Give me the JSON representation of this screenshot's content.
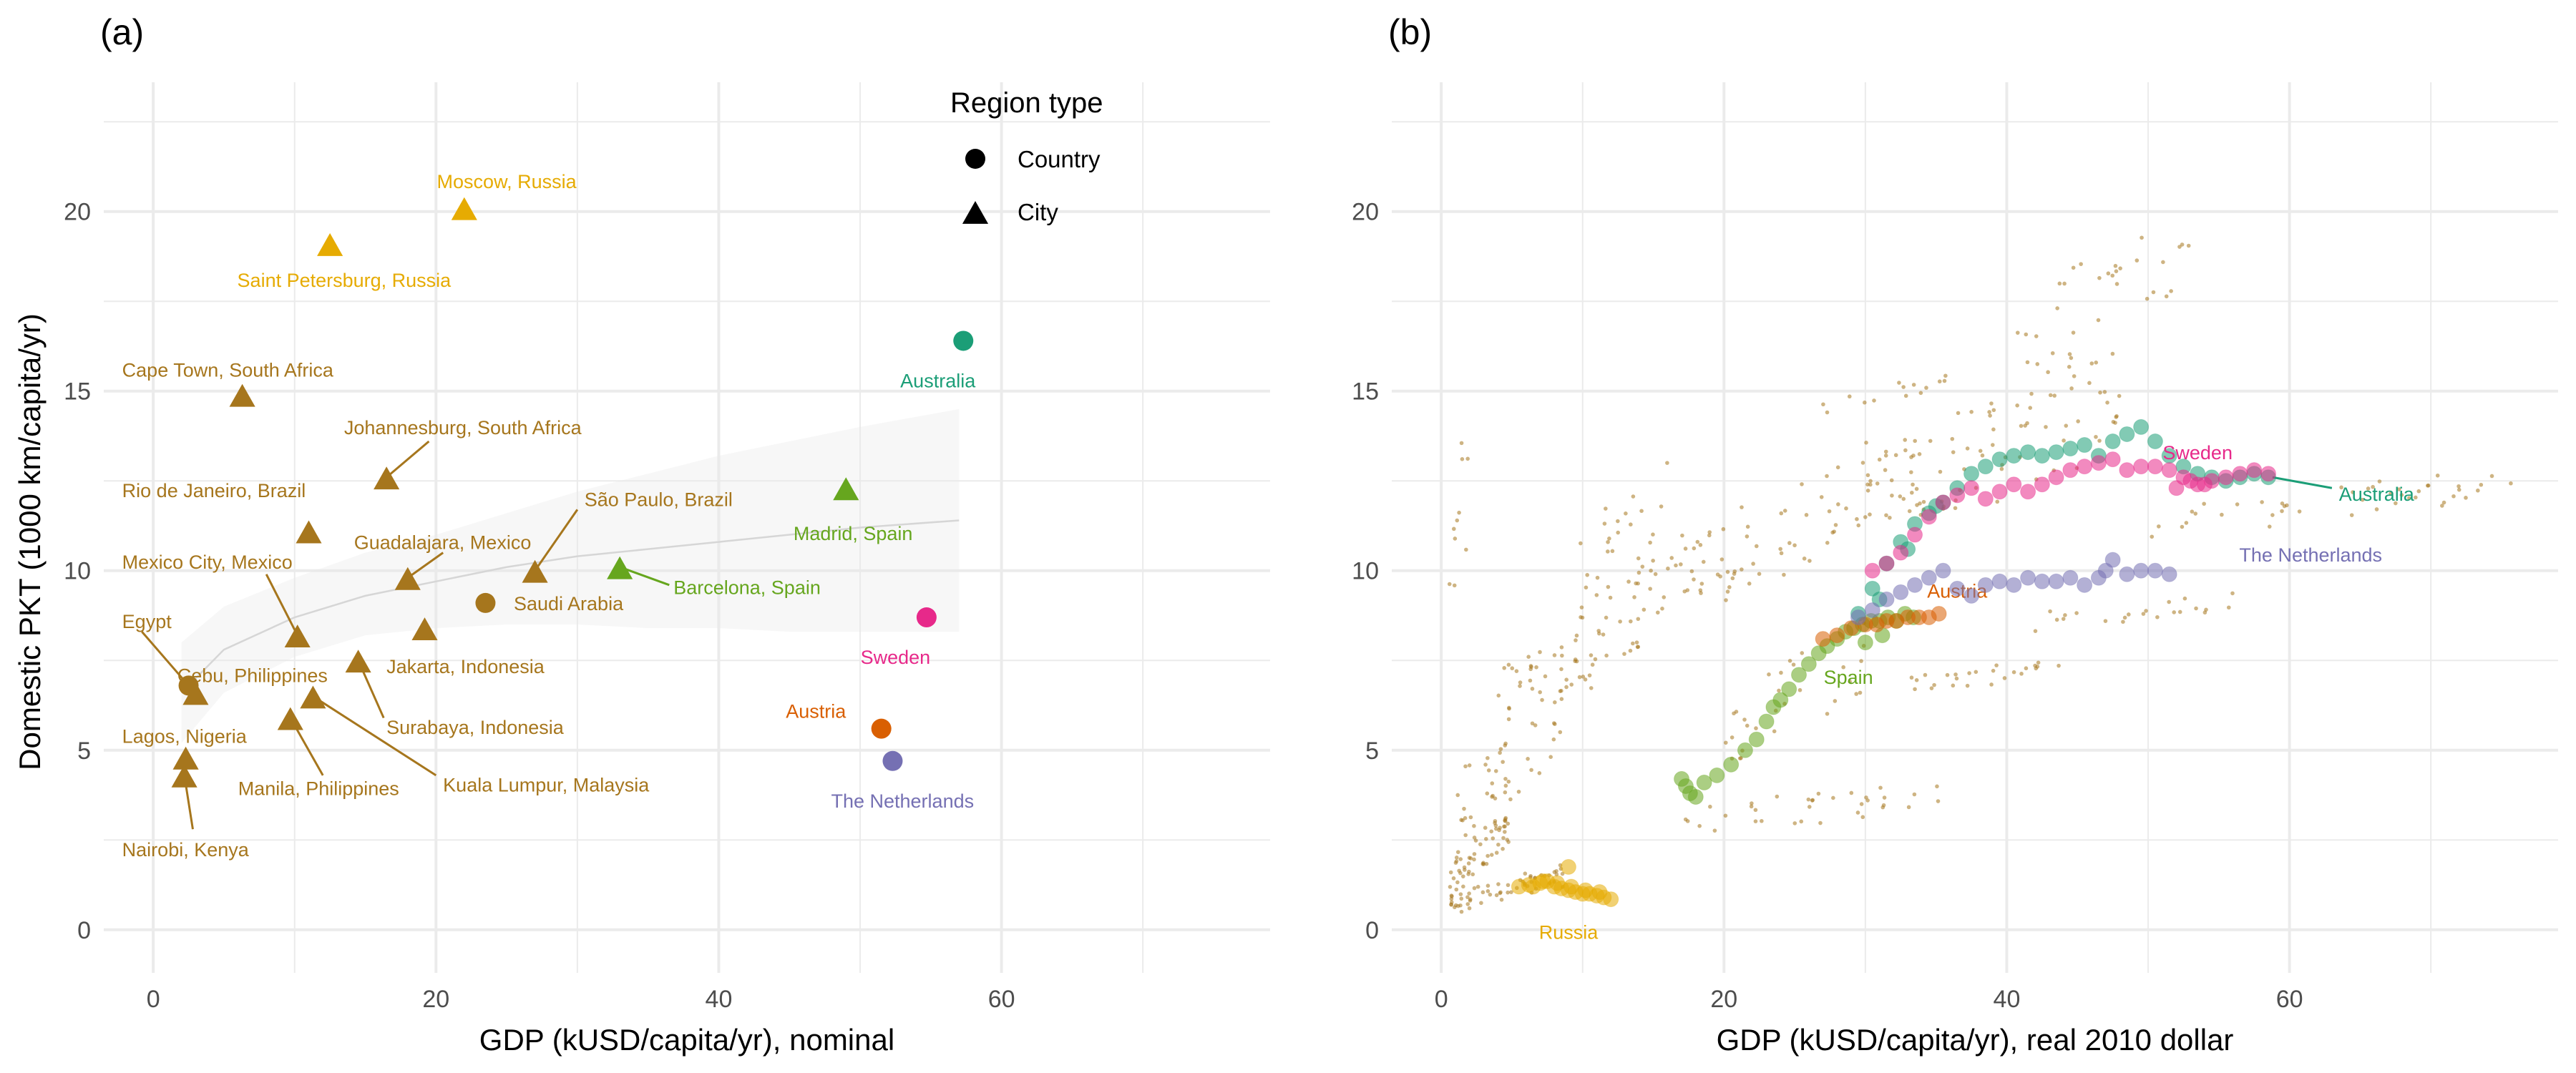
{
  "colors": {
    "africa_brown": "#A6761D",
    "russia_yellow": "#E6AB02",
    "australia_green": "#1B9E77",
    "spain_green": "#66A61E",
    "sweden_pink": "#E7298A",
    "austria_orange": "#D95F02",
    "netherlands_purple": "#7570B3",
    "grid": "#EBEBEB",
    "tick_text": "#4D4D4D",
    "ribbon": "#E8E8E8",
    "trend": "#D6D6D6"
  },
  "chart_data": [
    {
      "type": "scatter",
      "panel": "(a)",
      "xlabel": "GDP (kUSD/capita/yr), nominal",
      "ylabel": "Domestic PKT (1000 km/capita/yr)",
      "xlim": [
        -3.5,
        79
      ],
      "ylim": [
        -1.2,
        23.6
      ],
      "xticks": [
        0,
        20,
        40,
        60
      ],
      "yticks": [
        0,
        5,
        10,
        15,
        20
      ],
      "grid": true,
      "legend": {
        "title": "Region type",
        "position": "top-center",
        "entries": [
          {
            "label": "Country",
            "shape": "circle"
          },
          {
            "label": "City",
            "shape": "triangle"
          }
        ]
      },
      "trend": {
        "x": [
          2,
          5,
          10,
          15,
          20,
          25,
          30,
          35,
          40,
          45,
          50,
          57
        ],
        "y": [
          6.6,
          7.8,
          8.7,
          9.3,
          9.7,
          10.1,
          10.4,
          10.6,
          10.8,
          11.0,
          11.2,
          11.4
        ],
        "lower": [
          5.2,
          6.6,
          7.6,
          8.2,
          8.4,
          8.5,
          8.5,
          8.4,
          8.4,
          8.3,
          8.3,
          8.3
        ],
        "upper": [
          8.0,
          9.0,
          9.8,
          10.5,
          11.0,
          11.6,
          12.2,
          12.7,
          13.2,
          13.6,
          14.0,
          14.5
        ]
      },
      "points": [
        {
          "label": "Moscow, Russia",
          "x": 22.0,
          "y": 20.1,
          "shape": "triangle",
          "color": "russia_yellow",
          "lx": 25.0,
          "ly": 20.85,
          "anchor": "middle"
        },
        {
          "label": "Saint Petersburg, Russia",
          "x": 12.5,
          "y": 19.1,
          "shape": "triangle",
          "color": "russia_yellow",
          "lx": 13.5,
          "ly": 18.1,
          "anchor": "middle"
        },
        {
          "label": "Cape Town, South Africa",
          "x": 6.3,
          "y": 14.9,
          "shape": "triangle",
          "color": "africa_brown",
          "lx": -2.2,
          "ly": 15.6,
          "anchor": "start"
        },
        {
          "label": "Johannesburg, South Africa",
          "x": 16.5,
          "y": 12.6,
          "shape": "triangle",
          "color": "africa_brown",
          "lx": 13.5,
          "ly": 14.0,
          "anchor": "start",
          "line": [
            [
              16.5,
              12.6
            ],
            [
              19.5,
              13.6
            ]
          ]
        },
        {
          "label": "Rio de Janeiro, Brazil",
          "x": 11.0,
          "y": 11.1,
          "shape": "triangle",
          "color": "africa_brown",
          "lx": -2.2,
          "ly": 12.25,
          "anchor": "start"
        },
        {
          "label": "São Paulo, Brazil",
          "x": 27.0,
          "y": 10.0,
          "shape": "triangle",
          "color": "africa_brown",
          "lx": 30.5,
          "ly": 12.0,
          "anchor": "start",
          "line": [
            [
              27.0,
              10.0
            ],
            [
              30.0,
              11.7
            ]
          ]
        },
        {
          "label": "Madrid, Spain",
          "x": 49.0,
          "y": 12.3,
          "shape": "triangle",
          "color": "spain_green",
          "lx": 49.5,
          "ly": 11.05,
          "anchor": "middle"
        },
        {
          "label": "Guadalajara, Mexico",
          "x": 18.0,
          "y": 9.8,
          "shape": "triangle",
          "color": "africa_brown",
          "lx": 14.2,
          "ly": 10.8,
          "anchor": "start",
          "line": [
            [
              18.0,
              9.8
            ],
            [
              20.5,
              10.5
            ]
          ]
        },
        {
          "label": "Mexico City, Mexico",
          "x": 10.2,
          "y": 8.2,
          "shape": "triangle",
          "color": "africa_brown",
          "lx": -2.2,
          "ly": 10.25,
          "anchor": "start",
          "line": [
            [
              10.2,
              8.2
            ],
            [
              8.0,
              9.9
            ]
          ]
        },
        {
          "label": "Barcelona, Spain",
          "x": 33.0,
          "y": 10.1,
          "shape": "triangle",
          "color": "spain_green",
          "lx": 36.8,
          "ly": 9.55,
          "anchor": "start",
          "line": [
            [
              33.0,
              10.1
            ],
            [
              36.5,
              9.6
            ]
          ]
        },
        {
          "label": "Saudi Arabia",
          "x": 23.5,
          "y": 9.1,
          "shape": "circle",
          "color": "africa_brown",
          "lx": 25.5,
          "ly": 9.1,
          "anchor": "start"
        },
        {
          "label": "Egypt",
          "x": 2.5,
          "y": 6.8,
          "shape": "circle",
          "color": "africa_brown",
          "lx": -2.2,
          "ly": 8.6,
          "anchor": "start",
          "line": [
            [
              2.5,
              6.8
            ],
            [
              -0.8,
              8.3
            ]
          ]
        },
        {
          "label": "Jakarta, Indonesia",
          "x": 19.2,
          "y": 8.4,
          "shape": "triangle",
          "color": "africa_brown",
          "lx": 16.5,
          "ly": 7.35,
          "anchor": "start"
        },
        {
          "label": "Cebu, Philippines",
          "x": 3.0,
          "y": 6.6,
          "shape": "triangle",
          "color": "africa_brown",
          "lx": 1.7,
          "ly": 7.1,
          "anchor": "start"
        },
        {
          "label": "Surabaya, Indonesia",
          "x": 14.5,
          "y": 7.5,
          "shape": "triangle",
          "color": "africa_brown",
          "lx": 16.5,
          "ly": 5.65,
          "anchor": "start",
          "line": [
            [
              14.5,
              7.5
            ],
            [
              16.3,
              5.9
            ]
          ]
        },
        {
          "label": "Kuala Lumpur, Malaysia",
          "x": 11.3,
          "y": 6.5,
          "shape": "triangle",
          "color": "africa_brown",
          "lx": 20.5,
          "ly": 4.05,
          "anchor": "start",
          "line": [
            [
              11.3,
              6.5
            ],
            [
              20.0,
              4.3
            ]
          ]
        },
        {
          "label": "Lagos, Nigeria",
          "x": 2.3,
          "y": 4.8,
          "shape": "triangle",
          "color": "africa_brown",
          "lx": -2.2,
          "ly": 5.4,
          "anchor": "start"
        },
        {
          "label": "Manila, Philippines",
          "x": 9.7,
          "y": 5.9,
          "shape": "triangle",
          "color": "africa_brown",
          "lx": 6.0,
          "ly": 3.95,
          "anchor": "start",
          "line": [
            [
              9.7,
              5.9
            ],
            [
              12.0,
              4.3
            ]
          ]
        },
        {
          "label": "Nairobi, Kenya",
          "x": 2.2,
          "y": 4.3,
          "shape": "triangle",
          "color": "africa_brown",
          "lx": -2.2,
          "ly": 2.25,
          "anchor": "start",
          "line": [
            [
              2.2,
              4.3
            ],
            [
              2.8,
              2.8
            ]
          ]
        },
        {
          "label": "Australia",
          "x": 57.3,
          "y": 16.4,
          "shape": "circle",
          "color": "australia_green",
          "lx": 55.5,
          "ly": 15.3,
          "anchor": "middle"
        },
        {
          "label": "Sweden",
          "x": 54.7,
          "y": 8.7,
          "shape": "circle",
          "color": "sweden_pink",
          "lx": 52.5,
          "ly": 7.6,
          "anchor": "middle"
        },
        {
          "label": "Austria",
          "x": 51.5,
          "y": 5.6,
          "shape": "circle",
          "color": "austria_orange",
          "lx": 49.0,
          "ly": 6.1,
          "anchor": "end"
        },
        {
          "label": "The Netherlands",
          "x": 52.3,
          "y": 4.7,
          "shape": "circle",
          "color": "netherlands_purple",
          "lx": 53.0,
          "ly": 3.6,
          "anchor": "middle"
        }
      ]
    },
    {
      "type": "scatter",
      "panel": "(b)",
      "xlabel": "GDP (kUSD/capita/yr), real 2010 dollar",
      "ylabel": "",
      "xlim": [
        -3.5,
        79
      ],
      "ylim": [
        -1.2,
        23.6
      ],
      "xticks": [
        0,
        20,
        40,
        60
      ],
      "yticks": [
        0,
        5,
        10,
        15,
        20
      ],
      "grid": true,
      "background_note": "other countries as small dots",
      "background": [
        {
          "x0": 0.5,
          "x1": 9.0,
          "y0": 0.4,
          "y1": 1.8,
          "n": 60,
          "seed": 3
        },
        {
          "x0": 0.5,
          "x1": 5.0,
          "y0": 0.6,
          "y1": 3.5,
          "n": 55,
          "seed": 5
        },
        {
          "x0": 1.0,
          "x1": 9.0,
          "y0": 2.0,
          "y1": 7.0,
          "n": 45,
          "seed": 7
        },
        {
          "x0": 4.0,
          "x1": 14.0,
          "y0": 5.5,
          "y1": 9.0,
          "n": 50,
          "seed": 9
        },
        {
          "x0": 9.0,
          "x1": 22.0,
          "y0": 7.0,
          "y1": 12.0,
          "n": 55,
          "seed": 11
        },
        {
          "x0": 20.0,
          "x1": 34.0,
          "y0": 8.5,
          "y1": 14.5,
          "n": 55,
          "seed": 13
        },
        {
          "x0": 30.0,
          "x1": 48.0,
          "y0": 10.0,
          "y1": 16.5,
          "n": 75,
          "seed": 17
        },
        {
          "x0": 40.0,
          "x1": 53.0,
          "y0": 14.0,
          "y1": 20.5,
          "n": 35,
          "seed": 19
        },
        {
          "x0": 50.0,
          "x1": 76.0,
          "y0": 10.8,
          "y1": 12.8,
          "n": 45,
          "seed": 23
        },
        {
          "x0": 17.0,
          "x1": 36.0,
          "y0": 2.5,
          "y1": 4.2,
          "n": 35,
          "seed": 29
        },
        {
          "x0": 33.0,
          "x1": 44.0,
          "y0": 6.5,
          "y1": 7.6,
          "n": 25,
          "seed": 31
        },
        {
          "x0": 26.0,
          "x1": 36.0,
          "y0": 14.0,
          "y1": 15.5,
          "n": 14,
          "seed": 37
        },
        {
          "x0": 40.0,
          "x1": 56.0,
          "y0": 8.0,
          "y1": 9.5,
          "n": 22,
          "seed": 41
        },
        {
          "x0": 0.5,
          "x1": 2.0,
          "y0": 7.0,
          "y1": 14.8,
          "n": 10,
          "seed": 43
        },
        {
          "x0": 9.0,
          "x1": 16.0,
          "y0": 9.0,
          "y1": 13.0,
          "n": 18,
          "seed": 47
        },
        {
          "x0": 20.0,
          "x1": 30.0,
          "y0": 3.5,
          "y1": 9.0,
          "n": 30,
          "seed": 53
        }
      ],
      "series": [
        {
          "name": "Russia",
          "color": "russia_yellow",
          "x": [
            5.5,
            6.2,
            7.0,
            7.5,
            8.0,
            8.5,
            9.0,
            9.5,
            10.0,
            10.5,
            11.0,
            11.5,
            12.0,
            11.2,
            10.2,
            9.2,
            8.2,
            7.2,
            6.5,
            9.0
          ],
          "y": [
            1.2,
            1.25,
            1.3,
            1.35,
            1.2,
            1.15,
            1.1,
            1.05,
            1.0,
            1.0,
            0.95,
            0.9,
            0.85,
            1.05,
            1.1,
            1.2,
            1.3,
            1.35,
            1.2,
            1.75
          ],
          "label": "Russia",
          "lx": 9.0,
          "ly": -0.05,
          "anchor": "middle"
        },
        {
          "name": "Spain",
          "color": "spain_green",
          "x": [
            17.0,
            17.3,
            17.6,
            18.0,
            18.6,
            19.5,
            20.5,
            21.5,
            22.3,
            23.0,
            23.5,
            24.0,
            24.6,
            25.3,
            26.0,
            26.7,
            27.3,
            28.0,
            28.6,
            29.2,
            29.8,
            30.4,
            31.0,
            31.6,
            32.2,
            32.8,
            33.4,
            30.0,
            31.2
          ],
          "y": [
            4.2,
            4.0,
            3.8,
            3.7,
            4.1,
            4.3,
            4.6,
            5.0,
            5.3,
            5.8,
            6.2,
            6.4,
            6.7,
            7.1,
            7.4,
            7.7,
            7.9,
            8.1,
            8.3,
            8.4,
            8.5,
            8.6,
            8.6,
            8.7,
            8.6,
            8.8,
            8.7,
            8.0,
            8.2
          ],
          "label": "Spain",
          "lx": 28.8,
          "ly": 7.05,
          "anchor": "middle"
        },
        {
          "name": "Australia",
          "color": "australia_green",
          "x": [
            29.5,
            30.5,
            31.5,
            32.5,
            33.5,
            34.5,
            35.5,
            36.5,
            37.5,
            38.5,
            39.5,
            40.5,
            41.5,
            42.5,
            43.5,
            44.5,
            45.5,
            46.5,
            47.5,
            48.5,
            49.5,
            50.5,
            51.5,
            52.5,
            53.5,
            54.5,
            55.5,
            56.5,
            57.5,
            58.5,
            31.0,
            33.0,
            35.0
          ],
          "y": [
            8.8,
            9.5,
            10.2,
            10.8,
            11.3,
            11.6,
            11.9,
            12.3,
            12.7,
            12.9,
            13.1,
            13.2,
            13.3,
            13.2,
            13.3,
            13.4,
            13.5,
            13.2,
            13.6,
            13.8,
            14.0,
            13.6,
            13.2,
            12.9,
            12.7,
            12.6,
            12.5,
            12.6,
            12.7,
            12.6,
            9.2,
            10.6,
            11.8
          ],
          "label": "Australia",
          "lx": 63.5,
          "ly": 12.15,
          "anchor": "start",
          "line": [
            [
              58.8,
              12.6
            ],
            [
              63.0,
              12.3
            ]
          ]
        },
        {
          "name": "Sweden",
          "color": "sweden_pink",
          "x": [
            30.5,
            31.5,
            32.5,
            33.5,
            34.5,
            35.5,
            36.5,
            37.5,
            38.5,
            39.5,
            40.5,
            41.5,
            42.5,
            43.5,
            44.5,
            45.5,
            46.5,
            47.5,
            48.5,
            49.5,
            50.5,
            51.5,
            52.5,
            53.5,
            54.5,
            55.5,
            56.5,
            57.5,
            58.5,
            52.0,
            53.0,
            54.0
          ],
          "y": [
            10.0,
            10.2,
            10.5,
            11.0,
            11.5,
            11.9,
            12.1,
            12.3,
            12.0,
            12.2,
            12.4,
            12.2,
            12.4,
            12.6,
            12.8,
            12.9,
            13.0,
            13.1,
            12.8,
            12.9,
            12.9,
            12.8,
            12.6,
            12.4,
            12.5,
            12.6,
            12.7,
            12.8,
            12.7,
            12.3,
            12.5,
            12.4
          ],
          "label": "Sweden",
          "lx": 53.5,
          "ly": 13.3,
          "anchor": "middle"
        },
        {
          "name": "Austria",
          "color": "austria_orange",
          "x": [
            27.0,
            28.0,
            29.0,
            30.0,
            30.8,
            31.5,
            32.2,
            33.0,
            33.8,
            34.5,
            35.2
          ],
          "y": [
            8.1,
            8.2,
            8.4,
            8.5,
            8.5,
            8.6,
            8.6,
            8.7,
            8.7,
            8.7,
            8.8
          ],
          "label": "Austria",
          "lx": 36.5,
          "ly": 9.45,
          "anchor": "middle"
        },
        {
          "name": "The Netherlands",
          "color": "netherlands_purple",
          "x": [
            29.5,
            30.5,
            31.5,
            32.5,
            33.5,
            34.5,
            35.5,
            36.5,
            37.5,
            38.5,
            39.5,
            40.5,
            41.5,
            42.5,
            43.5,
            44.5,
            45.5,
            46.5,
            47.0,
            47.5,
            48.5,
            49.5,
            50.5,
            51.5
          ],
          "y": [
            8.7,
            8.9,
            9.2,
            9.4,
            9.6,
            9.8,
            10.0,
            9.5,
            9.3,
            9.6,
            9.7,
            9.6,
            9.8,
            9.7,
            9.7,
            9.8,
            9.6,
            9.8,
            10.0,
            10.3,
            9.9,
            10.0,
            10.0,
            9.9
          ],
          "label": "The Netherlands",
          "lx": 61.5,
          "ly": 10.45,
          "anchor": "middle"
        }
      ]
    }
  ]
}
